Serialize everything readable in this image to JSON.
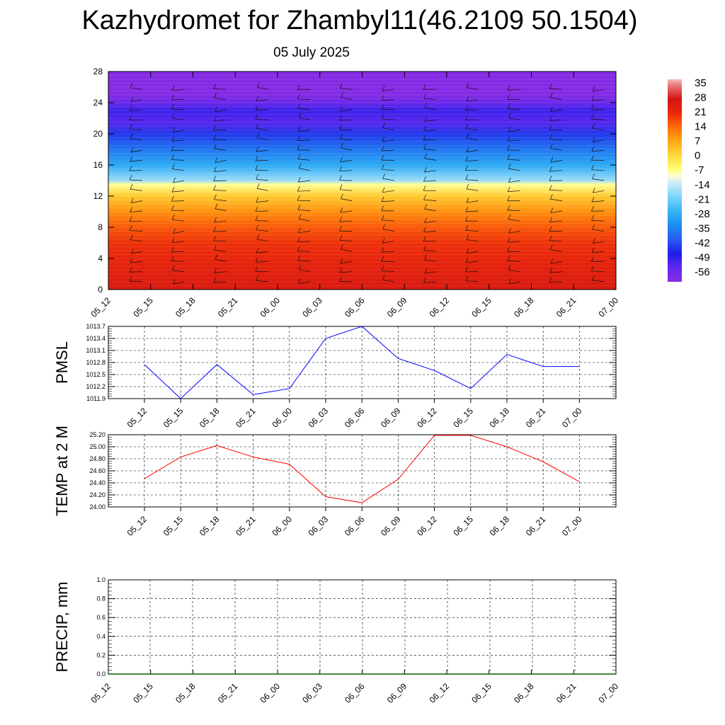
{
  "title": "Kazhydromet for Zhambyl11(46.2109 50.1504)",
  "subtitle": "05 July 2025",
  "time_labels": [
    "05_12",
    "05_15",
    "05_18",
    "05_21",
    "06_00",
    "06_03",
    "06_06",
    "06_09",
    "06_12",
    "06_15",
    "06_18",
    "06_21",
    "07_00"
  ],
  "chart_data": [
    {
      "type": "heatmap",
      "ylim": [
        0,
        28
      ],
      "yticks": [
        0,
        4,
        8,
        12,
        16,
        20,
        24,
        28
      ],
      "x": [
        "05_12",
        "05_15",
        "05_18",
        "05_21",
        "06_00",
        "06_03",
        "06_06",
        "06_09",
        "06_12",
        "06_15",
        "06_18",
        "06_21",
        "07_00"
      ],
      "colorbar": {
        "labels": [
          "35",
          "28",
          "21",
          "14",
          "7",
          "0",
          "-7",
          "-14",
          "-21",
          "-28",
          "-35",
          "-42",
          "-49",
          "-56"
        ],
        "min": -63,
        "max": 38
      },
      "temperature_by_level": [
        {
          "level": 0,
          "value": 26
        },
        {
          "level": 2,
          "value": 24
        },
        {
          "level": 4,
          "value": 22
        },
        {
          "level": 6,
          "value": 20
        },
        {
          "level": 8,
          "value": 16
        },
        {
          "level": 10,
          "value": 10
        },
        {
          "level": 12,
          "value": 2
        },
        {
          "level": 13.5,
          "value": -8
        },
        {
          "level": 14,
          "value": -18
        },
        {
          "level": 16,
          "value": -30
        },
        {
          "level": 18,
          "value": -38
        },
        {
          "level": 20,
          "value": -46
        },
        {
          "level": 21.5,
          "value": -55
        },
        {
          "level": 23,
          "value": -52
        },
        {
          "level": 24,
          "value": -58
        },
        {
          "level": 25,
          "value": -62
        },
        {
          "level": 28,
          "value": -62
        }
      ],
      "wind_barbs": true,
      "colors": {
        "warm": "#e41c10",
        "mid": "#ffff66",
        "cold": "#1e1ee8",
        "top": "#8a2be2"
      }
    },
    {
      "type": "line",
      "ylabel": "PMSL",
      "x": [
        "05_12",
        "05_15",
        "05_18",
        "05_21",
        "06_00",
        "06_03",
        "06_06",
        "06_09",
        "06_12",
        "06_15",
        "06_18",
        "06_21",
        "07_00"
      ],
      "yticks": [
        "1013.7",
        "1013.4",
        "1013.1",
        "1012.8",
        "1012.5",
        "1012.2",
        "1011.9"
      ],
      "ylim": [
        1011.9,
        1013.7
      ],
      "series": [
        {
          "values": [
            1012.75,
            1011.9,
            1012.75,
            1012.0,
            1012.15,
            1013.4,
            1013.7,
            1012.9,
            1012.6,
            1012.15,
            1013.0,
            1012.7,
            1012.7
          ],
          "color": "#0000ff"
        }
      ]
    },
    {
      "type": "line",
      "ylabel": "TEMP at 2 M",
      "x": [
        "05_12",
        "05_15",
        "05_18",
        "05_21",
        "06_00",
        "06_03",
        "06_06",
        "06_09",
        "06_12",
        "06_15",
        "06_18",
        "06_21",
        "07_00"
      ],
      "yticks": [
        "25.20",
        "25.00",
        "24.80",
        "24.60",
        "24.40",
        "24.20",
        "24.00"
      ],
      "ylim": [
        24.0,
        25.2
      ],
      "series": [
        {
          "values": [
            24.47,
            24.83,
            25.02,
            24.83,
            24.71,
            24.17,
            24.07,
            24.46,
            25.19,
            25.19,
            25.0,
            24.75,
            24.42
          ],
          "color": "#ff0000"
        }
      ]
    },
    {
      "type": "line",
      "ylabel": "PRECIP, mm",
      "x": [
        "05_12",
        "05_15",
        "05_18",
        "05_21",
        "06_00",
        "06_03",
        "06_06",
        "06_09",
        "06_12",
        "06_15",
        "06_18",
        "06_21",
        "07_00"
      ],
      "yticks": [
        "1.0",
        "0.8",
        "0.6",
        "0.4",
        "0.2",
        "0.0"
      ],
      "ylim": [
        0,
        1.0
      ],
      "series": [
        {
          "values": [
            0,
            0,
            0,
            0,
            0,
            0,
            0,
            0,
            0,
            0,
            0,
            0,
            0
          ],
          "color": "#006400"
        }
      ]
    }
  ]
}
